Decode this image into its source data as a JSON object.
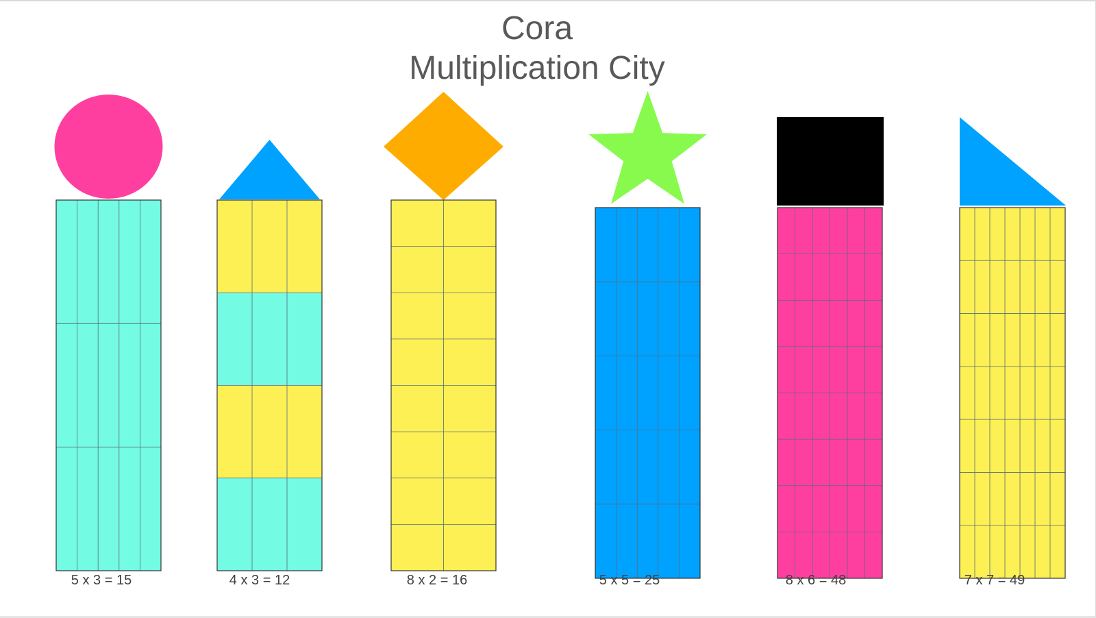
{
  "title": {
    "line1": "Cora",
    "line2": "Multiplication City"
  },
  "buildings": [
    {
      "id": "b1",
      "cols": 5,
      "rows": 3,
      "caption": "5 x 3 = 15",
      "roof": "circle",
      "roof_color": "#ff3fa0",
      "colors": [
        "#73fbe4"
      ]
    },
    {
      "id": "b2",
      "cols": 3,
      "rows": 4,
      "caption": "4 x 3 = 12",
      "roof": "triangle",
      "roof_color": "#00a2ff",
      "colors": [
        "#fdf054",
        "#73fbe4",
        "#fdf054",
        "#73fbe4"
      ]
    },
    {
      "id": "b3",
      "cols": 2,
      "rows": 8,
      "caption": "8 x 2 = 16",
      "roof": "diamond",
      "roof_color": "#ffac00",
      "colors": [
        "#fdf054"
      ]
    },
    {
      "id": "b4",
      "cols": 5,
      "rows": 5,
      "caption": "5 x 5 = 25",
      "roof": "star",
      "roof_color": "#88fa4e",
      "colors": [
        "#00a2ff"
      ]
    },
    {
      "id": "b5",
      "cols": 6,
      "rows": 8,
      "caption": "8 x 6 = 48",
      "roof": "rectangle",
      "roof_color": "#000000",
      "colors": [
        "#ff3fa0"
      ]
    },
    {
      "id": "b6",
      "cols": 7,
      "rows": 7,
      "caption": "7 x 7 = 49",
      "roof": "right-triangle",
      "roof_color": "#00a2ff",
      "colors": [
        "#fdf054"
      ]
    }
  ]
}
